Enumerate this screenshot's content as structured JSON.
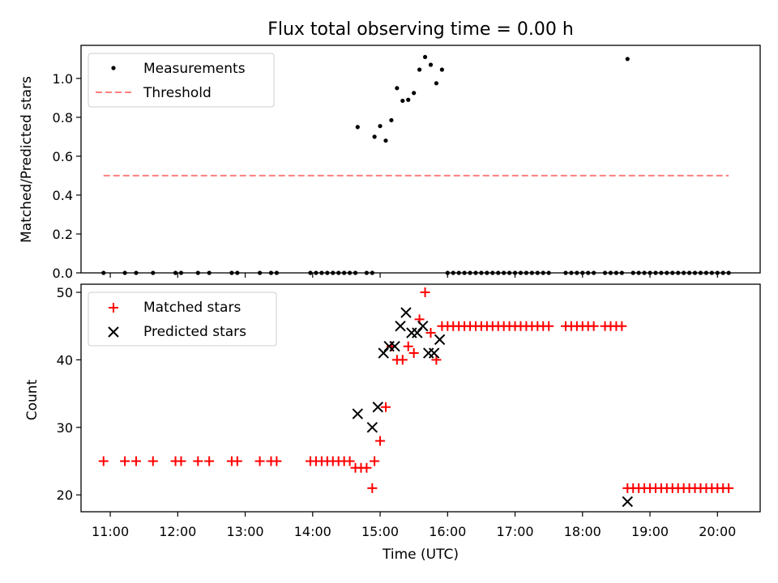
{
  "chart_data": [
    {
      "type": "scatter",
      "title": "Flux total observing time = 0.00 h",
      "xlabel": "",
      "ylabel": "Matched/Predicted stars",
      "xlim": [
        "10:34",
        "20:38"
      ],
      "ylim": [
        0,
        1.17
      ],
      "yticks": [
        "0.0",
        "0.2",
        "0.4",
        "0.6",
        "0.8",
        "1.0"
      ],
      "legend": "top-left",
      "series": [
        {
          "name": "Measurements",
          "color": "#000000",
          "marker": "dot",
          "x": [
            "10:54",
            "11:13",
            "11:23",
            "11:38",
            "11:58",
            "12:03",
            "12:18",
            "12:28",
            "12:48",
            "12:53",
            "13:13",
            "13:23",
            "13:28",
            "13:58",
            "14:03",
            "14:08",
            "14:13",
            "14:18",
            "14:23",
            "14:28",
            "14:33",
            "14:38",
            "14:40",
            "14:48",
            "14:53",
            "14:55",
            "15:00",
            "15:05",
            "15:10",
            "15:15",
            "15:20",
            "15:25",
            "15:30",
            "15:35",
            "15:40",
            "15:45",
            "15:50",
            "15:55",
            "16:00",
            "16:05",
            "16:10",
            "16:15",
            "16:20",
            "16:25",
            "16:30",
            "16:35",
            "16:40",
            "16:45",
            "16:50",
            "16:55",
            "17:00",
            "17:05",
            "17:10",
            "17:15",
            "17:20",
            "17:25",
            "17:30",
            "17:45",
            "17:50",
            "17:55",
            "18:00",
            "18:05",
            "18:10",
            "18:20",
            "18:25",
            "18:30",
            "18:35",
            "18:40",
            "18:45",
            "18:50",
            "18:55",
            "19:00",
            "19:05",
            "19:10",
            "19:15",
            "19:20",
            "19:25",
            "19:30",
            "19:35",
            "19:40",
            "19:45",
            "19:50",
            "19:55",
            "20:00",
            "20:05",
            "20:10"
          ],
          "values": [
            0,
            0,
            0,
            0,
            0,
            0,
            0,
            0,
            0,
            0,
            0,
            0,
            0,
            0,
            0,
            0,
            0,
            0,
            0,
            0,
            0,
            0,
            0.75,
            0,
            0,
            0.7,
            0.755,
            0.68,
            0.785,
            0.95,
            0.885,
            0.89,
            0.925,
            1.045,
            1.11,
            1.07,
            0.975,
            1.045,
            0,
            0,
            0,
            0,
            0,
            0,
            0,
            0,
            0,
            0,
            0,
            0,
            0,
            0,
            0,
            0,
            0,
            0,
            0,
            0,
            0,
            0,
            0,
            0,
            0,
            0,
            0,
            0,
            0,
            1.1,
            0,
            0,
            0,
            0,
            0,
            0,
            0,
            0,
            0,
            0,
            0,
            0,
            0,
            0,
            0,
            0,
            0,
            0
          ]
        },
        {
          "name": "Threshold",
          "color": "#ff7f7f",
          "style": "dashed",
          "x": [
            "10:54",
            "20:10"
          ],
          "values": [
            0.5,
            0.5
          ]
        }
      ]
    },
    {
      "type": "scatter",
      "title": "",
      "xlabel": "Time (UTC)",
      "ylabel": "Count",
      "xlim": [
        "10:34",
        "20:38"
      ],
      "ylim": [
        17.5,
        51.2
      ],
      "yticks": [
        "20",
        "30",
        "40",
        "50"
      ],
      "xticks": [
        "11:00",
        "12:00",
        "13:00",
        "14:00",
        "15:00",
        "16:00",
        "17:00",
        "18:00",
        "19:00",
        "20:00"
      ],
      "legend": "top-left",
      "series": [
        {
          "name": "Matched stars",
          "color": "#ff0000",
          "marker": "plus",
          "x": [
            "10:54",
            "11:13",
            "11:23",
            "11:38",
            "11:58",
            "12:03",
            "12:18",
            "12:28",
            "12:48",
            "12:53",
            "13:13",
            "13:23",
            "13:28",
            "13:58",
            "14:03",
            "14:08",
            "14:13",
            "14:18",
            "14:23",
            "14:28",
            "14:33",
            "14:38",
            "14:43",
            "14:48",
            "14:53",
            "14:55",
            "15:00",
            "15:05",
            "15:10",
            "15:15",
            "15:20",
            "15:25",
            "15:30",
            "15:35",
            "15:40",
            "15:45",
            "15:50",
            "15:55",
            "16:00",
            "16:05",
            "16:10",
            "16:15",
            "16:20",
            "16:25",
            "16:30",
            "16:35",
            "16:40",
            "16:45",
            "16:50",
            "16:55",
            "17:00",
            "17:05",
            "17:10",
            "17:15",
            "17:20",
            "17:25",
            "17:30",
            "17:45",
            "17:50",
            "17:55",
            "18:00",
            "18:05",
            "18:10",
            "18:20",
            "18:25",
            "18:30",
            "18:35",
            "18:40",
            "18:45",
            "18:50",
            "18:55",
            "19:00",
            "19:05",
            "19:10",
            "19:15",
            "19:20",
            "19:25",
            "19:30",
            "19:35",
            "19:40",
            "19:45",
            "19:50",
            "19:55",
            "20:00",
            "20:05",
            "20:10"
          ],
          "values": [
            25,
            25,
            25,
            25,
            25,
            25,
            25,
            25,
            25,
            25,
            25,
            25,
            25,
            25,
            25,
            25,
            25,
            25,
            25,
            25,
            25,
            24,
            24,
            24,
            21,
            25,
            28,
            33,
            42,
            40,
            40,
            42,
            41,
            46,
            50,
            44,
            40,
            45,
            45,
            45,
            45,
            45,
            45,
            45,
            45,
            45,
            45,
            45,
            45,
            45,
            45,
            45,
            45,
            45,
            45,
            45,
            45,
            45,
            45,
            45,
            45,
            45,
            45,
            45,
            45,
            45,
            45,
            21,
            21,
            21,
            21,
            21,
            21,
            21,
            21,
            21,
            21,
            21,
            21,
            21,
            21,
            21,
            21,
            21,
            21,
            21
          ]
        },
        {
          "name": "Predicted stars",
          "color": "#000000",
          "marker": "x",
          "x": [
            "14:40",
            "14:53",
            "14:58",
            "15:03",
            "15:08",
            "15:13",
            "15:18",
            "15:23",
            "15:28",
            "15:33",
            "15:38",
            "15:43",
            "15:48",
            "15:53",
            "18:40"
          ],
          "values": [
            32,
            30,
            33,
            41,
            42,
            42,
            45,
            47,
            44,
            44,
            45,
            41,
            41,
            43,
            19
          ]
        }
      ]
    }
  ]
}
